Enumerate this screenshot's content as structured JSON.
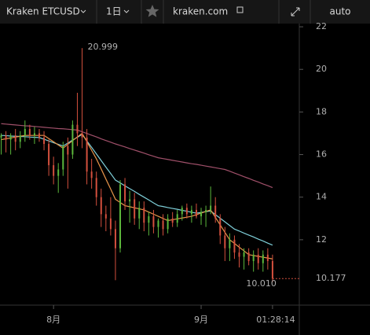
{
  "toolbar": {
    "symbol": "Kraken ETCUSD",
    "interval": "1日",
    "source": "kraken.com",
    "scale": "auto"
  },
  "chart_data": {
    "type": "candlestick",
    "categories": [
      null,
      null,
      null,
      null,
      null,
      null,
      null,
      null,
      null,
      null,
      null,
      "8月",
      null,
      null,
      null,
      null,
      null,
      null,
      null,
      null,
      null,
      null,
      null,
      null,
      null,
      null,
      null,
      null,
      null,
      null,
      null,
      null,
      null,
      null,
      null,
      null,
      null,
      null,
      null,
      null,
      null,
      null,
      "9月",
      null,
      null,
      null,
      null,
      null,
      null,
      null,
      null,
      null,
      null,
      null,
      null,
      null,
      null,
      null
    ],
    "open": [
      16.8,
      16.9,
      16.7,
      16.9,
      16.6,
      16.9,
      17.2,
      16.9,
      17.0,
      16.8,
      16.5,
      15.5,
      15.0,
      15.3,
      16.4,
      16.0,
      17.4,
      17.0,
      16.8,
      15.2,
      14.9,
      14.0,
      13.2,
      13.0,
      12.5,
      11.6,
      14.6,
      13.8,
      13.9,
      13.0,
      13.5,
      12.8,
      13.1,
      12.6,
      12.9,
      12.5,
      13.0,
      12.8,
      13.2,
      13.5,
      13.2,
      13.4,
      13.1,
      13.3,
      13.4,
      13.6,
      13.0,
      12.2,
      11.6,
      12.0,
      11.4,
      11.2,
      11.4,
      11.0,
      11.3,
      10.9,
      11.3,
      11.0
    ],
    "high": [
      17.0,
      17.1,
      17.0,
      17.2,
      17.1,
      17.6,
      17.4,
      17.3,
      17.2,
      17.1,
      16.7,
      15.9,
      15.6,
      16.6,
      16.8,
      17.6,
      18.9,
      20.999,
      17.2,
      15.8,
      15.2,
      14.4,
      13.6,
      14.0,
      12.9,
      14.8,
      14.9,
      14.3,
      14.2,
      13.8,
      13.8,
      13.3,
      13.4,
      13.0,
      13.2,
      13.2,
      13.3,
      13.4,
      13.6,
      13.7,
      13.6,
      13.7,
      13.5,
      13.6,
      14.5,
      14.0,
      13.2,
      12.6,
      12.3,
      12.2,
      11.8,
      11.6,
      11.6,
      11.5,
      11.6,
      11.5,
      11.6,
      11.3
    ],
    "low": [
      16.0,
      16.1,
      16.0,
      16.2,
      16.3,
      16.6,
      16.7,
      16.5,
      16.6,
      16.2,
      15.0,
      14.6,
      14.2,
      15.0,
      14.4,
      15.8,
      16.4,
      16.3,
      14.6,
      14.4,
      13.6,
      12.6,
      12.4,
      12.2,
      10.1,
      11.4,
      13.4,
      12.8,
      12.7,
      12.5,
      12.4,
      12.2,
      12.3,
      12.1,
      12.2,
      12.3,
      12.6,
      12.6,
      12.9,
      13.0,
      12.8,
      13.0,
      12.7,
      12.6,
      13.2,
      12.8,
      11.8,
      11.0,
      11.0,
      11.1,
      10.7,
      10.6,
      10.8,
      10.5,
      10.6,
      10.5,
      10.6,
      10.01
    ],
    "close": [
      16.9,
      16.7,
      16.9,
      16.6,
      16.9,
      17.2,
      16.9,
      17.0,
      16.8,
      16.5,
      15.5,
      15.0,
      15.3,
      16.4,
      16.0,
      17.4,
      17.0,
      16.8,
      15.2,
      14.9,
      14.0,
      13.2,
      13.0,
      12.5,
      11.6,
      14.6,
      13.8,
      13.9,
      13.0,
      13.5,
      12.8,
      13.1,
      12.6,
      12.9,
      12.5,
      13.0,
      12.8,
      13.2,
      13.5,
      13.2,
      13.4,
      13.1,
      13.3,
      13.4,
      13.6,
      13.0,
      12.2,
      11.6,
      12.0,
      11.4,
      11.2,
      11.4,
      11.0,
      11.3,
      10.9,
      11.3,
      11.0,
      10.177
    ],
    "high_labels": [
      null,
      null,
      null,
      null,
      null,
      null,
      null,
      null,
      null,
      null,
      null,
      null,
      null,
      null,
      null,
      null,
      null,
      "20.999",
      null,
      null,
      null,
      null,
      null,
      null,
      null,
      null,
      null,
      null,
      null,
      null,
      null,
      null,
      null,
      null,
      null,
      null,
      null,
      null,
      null,
      null,
      null,
      null,
      null,
      null,
      null,
      null,
      null,
      null,
      null,
      null,
      null,
      null,
      null,
      null,
      null,
      null,
      null,
      null
    ],
    "low_labels": [
      null,
      null,
      null,
      null,
      null,
      null,
      null,
      null,
      null,
      null,
      null,
      null,
      null,
      null,
      null,
      null,
      null,
      null,
      null,
      null,
      null,
      null,
      null,
      null,
      null,
      null,
      null,
      null,
      null,
      null,
      null,
      null,
      null,
      null,
      null,
      null,
      null,
      null,
      null,
      null,
      null,
      null,
      null,
      null,
      null,
      null,
      null,
      null,
      null,
      null,
      null,
      null,
      null,
      null,
      null,
      null,
      null,
      "10.010"
    ],
    "up_color": "#5cb83c",
    "down_color": "#d4503e",
    "series": [
      {
        "color": "#a0506a",
        "values": [
          17.45,
          17.43,
          17.41,
          17.39,
          17.37,
          17.35,
          17.34,
          17.32,
          17.3,
          17.28,
          17.26,
          17.24,
          17.22,
          17.21,
          17.19,
          17.17,
          17.15,
          17.07,
          16.99,
          16.91,
          16.83,
          16.74,
          16.66,
          16.58,
          16.5,
          16.43,
          16.36,
          16.28,
          16.21,
          16.14,
          16.07,
          15.99,
          15.92,
          15.85,
          15.81,
          15.77,
          15.73,
          15.69,
          15.65,
          15.61,
          15.57,
          15.54,
          15.5,
          15.46,
          15.42,
          15.38,
          15.34,
          15.3,
          15.22,
          15.13,
          15.05,
          14.96,
          14.88,
          14.79,
          14.71,
          14.62,
          14.54,
          14.45
        ]
      },
      {
        "color": "#7ecfd9",
        "values": [
          16.9,
          16.89,
          16.87,
          16.86,
          16.85,
          16.84,
          16.82,
          16.81,
          16.8,
          16.72,
          16.64,
          16.56,
          16.48,
          16.4,
          16.54,
          16.68,
          16.81,
          16.95,
          16.64,
          16.34,
          16.03,
          15.72,
          15.41,
          15.11,
          14.8,
          14.67,
          14.53,
          14.4,
          14.27,
          14.13,
          14.0,
          13.87,
          13.73,
          13.6,
          13.56,
          13.51,
          13.47,
          13.43,
          13.38,
          13.34,
          13.29,
          13.25,
          13.28,
          13.32,
          13.35,
          13.18,
          13.01,
          12.84,
          12.67,
          12.5,
          12.41,
          12.31,
          12.22,
          12.13,
          12.03,
          11.94,
          11.84,
          11.75
        ]
      },
      {
        "color": "#e8944a",
        "values": [
          16.7,
          16.74,
          16.78,
          16.82,
          16.86,
          16.9,
          16.9,
          16.9,
          16.9,
          16.9,
          16.75,
          16.6,
          16.45,
          16.3,
          16.48,
          16.65,
          16.83,
          17.0,
          16.6,
          16.2,
          15.8,
          15.33,
          14.85,
          14.38,
          13.9,
          13.75,
          13.6,
          13.55,
          13.5,
          13.45,
          13.4,
          13.3,
          13.2,
          13.1,
          13.0,
          12.9,
          12.94,
          12.98,
          13.02,
          13.06,
          13.1,
          13.18,
          13.25,
          13.33,
          13.4,
          13.05,
          12.7,
          12.35,
          12.0,
          11.83,
          11.65,
          11.48,
          11.3,
          11.26,
          11.22,
          11.18,
          11.14,
          11.1
        ]
      }
    ],
    "ylim": [
      8.93,
      22.15
    ],
    "yticks": [
      12,
      14,
      16,
      18,
      20,
      22
    ],
    "countdown": "01:28:14",
    "grid": false
  }
}
